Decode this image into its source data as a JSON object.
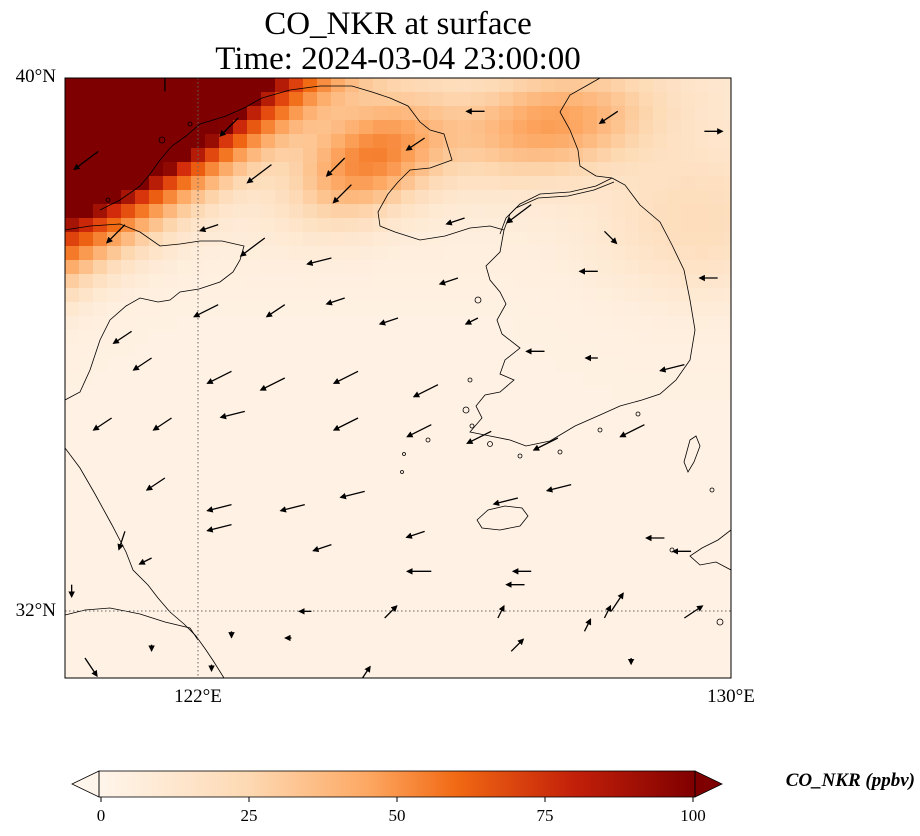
{
  "title": {
    "line1": "CO_NKR at surface",
    "line2": "Time: 2024-03-04 23:00:00"
  },
  "axes": {
    "y_ticks": [
      "40°N",
      "32°N"
    ],
    "x_ticks": [
      "122°E",
      "130°E"
    ]
  },
  "colorbar": {
    "label": "CO_NKR (ppbv)",
    "ticks": [
      "0",
      "25",
      "50",
      "75",
      "100"
    ],
    "colors": [
      "#fff5eb",
      "#fdd9b3",
      "#fda863",
      "#f16913",
      "#d42d0b",
      "#7f0000"
    ],
    "extend": "both"
  },
  "chart_data": {
    "type": "heatmap",
    "title": "CO_NKR at surface",
    "subtitle": "Time: 2024-03-04 23:00:00",
    "variable": "CO_NKR",
    "units": "ppbv",
    "lon_range": [
      120,
      130
    ],
    "lat_range": [
      31,
      40
    ],
    "gridlines": {
      "lon": [
        122
      ],
      "lat": [
        32
      ],
      "style": "dotted"
    },
    "colorbar_range": [
      0,
      100
    ],
    "plumes": [
      {
        "lon": 121.4,
        "lat": 39.1,
        "peak": 110,
        "extent_along": 3.5,
        "extent_across": 0.6,
        "angle": 35
      },
      {
        "lon": 120.5,
        "lat": 39.6,
        "peak": 110,
        "extent_along": 1.2,
        "extent_across": 0.6,
        "angle": 20
      },
      {
        "lon": 124.6,
        "lat": 38.8,
        "peak": 45,
        "extent_along": 0.8,
        "extent_across": 0.5,
        "angle": 30
      },
      {
        "lon": 127.3,
        "lat": 39.3,
        "peak": 35,
        "extent_along": 1.0,
        "extent_across": 0.5,
        "angle": 10
      },
      {
        "lon": 129.5,
        "lat": 37.8,
        "peak": 12,
        "extent_along": 1.0,
        "extent_across": 0.8,
        "angle": 0
      }
    ],
    "wind_arrows": [
      [
        120.5,
        38.9,
        -0.4,
        -0.3
      ],
      [
        121.5,
        39.8,
        0.0,
        0.4
      ],
      [
        122.6,
        39.4,
        -0.3,
        -0.3
      ],
      [
        124.2,
        38.8,
        -0.3,
        -0.3
      ],
      [
        125.4,
        39.1,
        -0.3,
        -0.2
      ],
      [
        126.3,
        39.5,
        -0.3,
        0.0
      ],
      [
        128.3,
        39.5,
        -0.3,
        -0.2
      ],
      [
        129.6,
        39.2,
        0.3,
        0.0
      ],
      [
        123.1,
        38.7,
        -0.4,
        -0.3
      ],
      [
        124.3,
        38.4,
        -0.3,
        -0.3
      ],
      [
        126.0,
        37.9,
        -0.3,
        -0.1
      ],
      [
        127.0,
        38.1,
        -0.4,
        -0.3
      ],
      [
        128.1,
        37.7,
        0.2,
        -0.2
      ],
      [
        120.9,
        37.8,
        -0.3,
        -0.3
      ],
      [
        122.3,
        37.8,
        -0.3,
        -0.1
      ],
      [
        123.0,
        37.6,
        -0.4,
        -0.3
      ],
      [
        124.0,
        37.3,
        -0.4,
        -0.1
      ],
      [
        125.9,
        37.0,
        -0.3,
        -0.1
      ],
      [
        126.2,
        36.4,
        -0.2,
        -0.1
      ],
      [
        128.0,
        37.1,
        -0.3,
        0.0
      ],
      [
        129.8,
        37.0,
        -0.3,
        0.0
      ],
      [
        122.3,
        36.6,
        -0.4,
        -0.2
      ],
      [
        123.3,
        36.6,
        -0.3,
        -0.2
      ],
      [
        124.2,
        36.7,
        -0.3,
        -0.1
      ],
      [
        125.0,
        36.4,
        -0.3,
        -0.1
      ],
      [
        121.0,
        36.2,
        -0.3,
        -0.2
      ],
      [
        121.3,
        35.8,
        -0.3,
        -0.2
      ],
      [
        122.5,
        35.6,
        -0.4,
        -0.2
      ],
      [
        123.3,
        35.5,
        -0.4,
        -0.2
      ],
      [
        124.4,
        35.6,
        -0.4,
        -0.2
      ],
      [
        125.6,
        35.4,
        -0.4,
        -0.2
      ],
      [
        127.2,
        35.9,
        -0.3,
        0.0
      ],
      [
        128.0,
        35.8,
        -0.2,
        0.0
      ],
      [
        129.3,
        35.7,
        -0.4,
        -0.1
      ],
      [
        120.7,
        34.9,
        -0.3,
        -0.2
      ],
      [
        121.6,
        34.9,
        -0.3,
        -0.2
      ],
      [
        122.7,
        35.0,
        -0.4,
        -0.1
      ],
      [
        124.4,
        34.9,
        -0.4,
        -0.2
      ],
      [
        125.5,
        34.8,
        -0.4,
        -0.2
      ],
      [
        126.4,
        34.7,
        -0.4,
        -0.2
      ],
      [
        127.4,
        34.6,
        -0.4,
        -0.2
      ],
      [
        128.7,
        34.8,
        -0.4,
        -0.2
      ],
      [
        121.5,
        34.0,
        -0.3,
        -0.2
      ],
      [
        122.5,
        33.6,
        -0.4,
        -0.1
      ],
      [
        123.6,
        33.6,
        -0.4,
        -0.1
      ],
      [
        124.5,
        33.8,
        -0.4,
        -0.1
      ],
      [
        126.8,
        33.7,
        -0.4,
        -0.1
      ],
      [
        127.6,
        33.9,
        -0.4,
        -0.1
      ],
      [
        120.9,
        33.2,
        -0.1,
        -0.3
      ],
      [
        121.3,
        32.8,
        -0.2,
        -0.1
      ],
      [
        122.5,
        33.3,
        -0.4,
        -0.1
      ],
      [
        124.0,
        33.0,
        -0.3,
        -0.1
      ],
      [
        125.4,
        33.2,
        -0.3,
        -0.1
      ],
      [
        127.0,
        32.6,
        -0.3,
        0.0
      ],
      [
        129.0,
        33.1,
        -0.3,
        0.0
      ],
      [
        129.4,
        32.9,
        -0.3,
        0.0
      ],
      [
        120.1,
        32.4,
        0.0,
        -0.2
      ],
      [
        123.7,
        32.0,
        -0.2,
        0.0
      ],
      [
        125.5,
        32.6,
        -0.4,
        0.0
      ],
      [
        126.9,
        32.4,
        -0.3,
        0.0
      ],
      [
        128.2,
        32.0,
        0.2,
        0.3
      ],
      [
        124.8,
        31.9,
        0.2,
        0.2
      ],
      [
        126.5,
        31.9,
        0.1,
        0.2
      ],
      [
        127.8,
        31.7,
        0.1,
        0.2
      ],
      [
        128.1,
        31.9,
        0.1,
        0.2
      ],
      [
        129.3,
        31.9,
        0.3,
        0.2
      ],
      [
        121.3,
        31.5,
        0.0,
        -0.1
      ],
      [
        122.2,
        31.2,
        0.0,
        -0.1
      ],
      [
        124.4,
        30.9,
        0.2,
        0.3
      ],
      [
        126.7,
        31.4,
        0.2,
        0.2
      ],
      [
        120.3,
        31.3,
        0.2,
        -0.3
      ],
      [
        128.5,
        31.3,
        0.0,
        -0.1
      ],
      [
        123.4,
        31.6,
        -0.1,
        0.0
      ],
      [
        122.5,
        31.7,
        0.0,
        -0.1
      ]
    ]
  }
}
